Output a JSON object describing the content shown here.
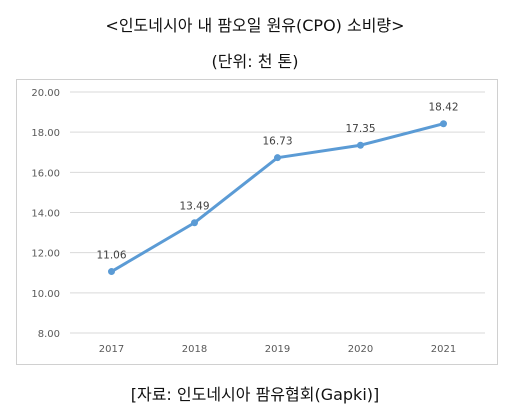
{
  "title": "<인도네시아 내 팜오일 원유(CPO) 소비량>",
  "unit_label": "(단위: 천 톤)",
  "source_label": "[자료: 인도네시아 팜유협회(Gapki)]",
  "colors": {
    "line": "#5b9bd5",
    "grid": "#d9d9d9",
    "text": "#595959"
  },
  "chart_data": {
    "type": "line",
    "categories": [
      "2017",
      "2018",
      "2019",
      "2020",
      "2021"
    ],
    "series": [
      {
        "values": [
          11.06,
          13.49,
          16.73,
          17.35,
          18.42
        ],
        "data_labels": [
          "11.06",
          "13.49",
          "16.73",
          "17.35",
          "18.42"
        ]
      }
    ],
    "y_ticks": [
      "8.00",
      "10.00",
      "12.00",
      "14.00",
      "16.00",
      "18.00",
      "20.00"
    ],
    "ylim": [
      8,
      20
    ],
    "grid": true,
    "legend": "none"
  }
}
